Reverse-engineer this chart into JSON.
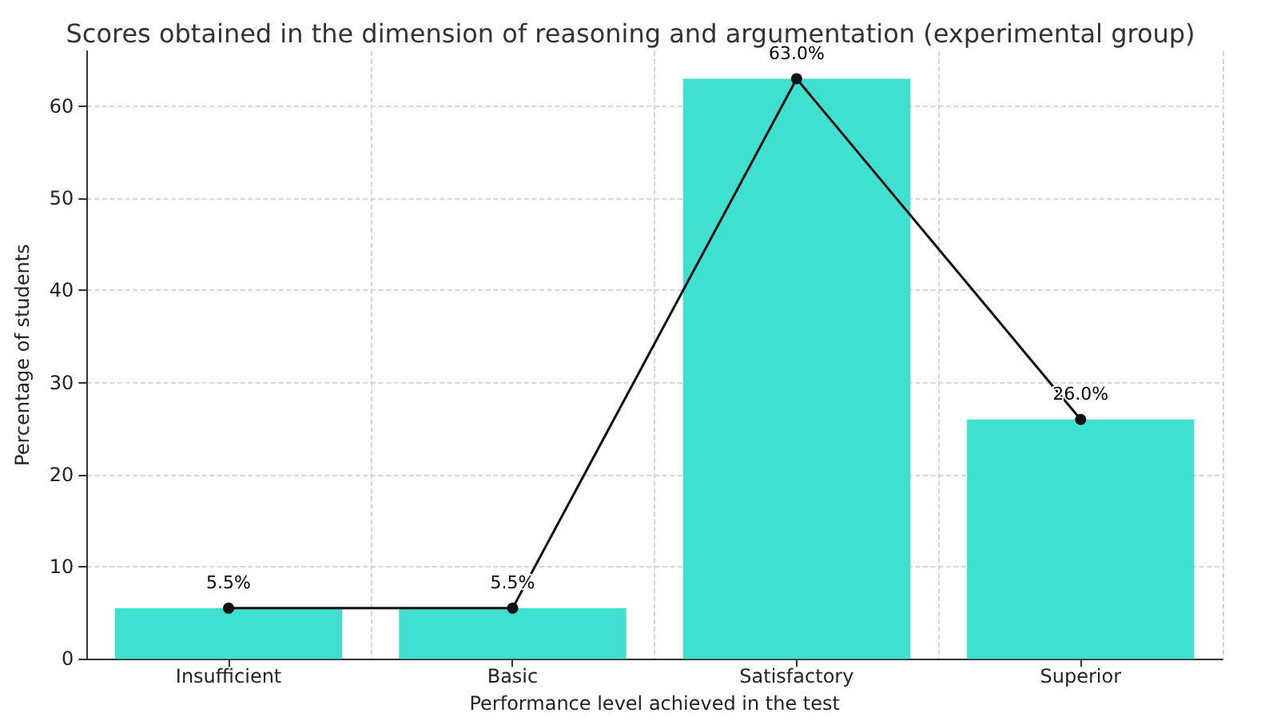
{
  "chart_data": {
    "type": "bar",
    "title": "Scores obtained in the dimension of reasoning and argumentation (experimental group)",
    "xlabel": "Performance level achieved in the test",
    "ylabel": "Percentage of students",
    "categories": [
      "Insufficient",
      "Basic",
      "Satisfactory",
      "Superior"
    ],
    "series": [
      {
        "color": "#40e0d0",
        "values": [
          5.5,
          5.5,
          63,
          26
        ]
      },
      {
        "type": "line",
        "color": "#111111",
        "values": [
          5.5,
          5.5,
          63,
          26
        ],
        "value_labels": [
          "5.5%",
          "5.5%",
          "63.0%",
          "26.0%"
        ],
        "marker": "circle",
        "line_style": "solid"
      }
    ],
    "ylim": [
      0,
      66
    ],
    "yticks": [
      0,
      10,
      20,
      30,
      40,
      50,
      60
    ],
    "grid": true
  }
}
